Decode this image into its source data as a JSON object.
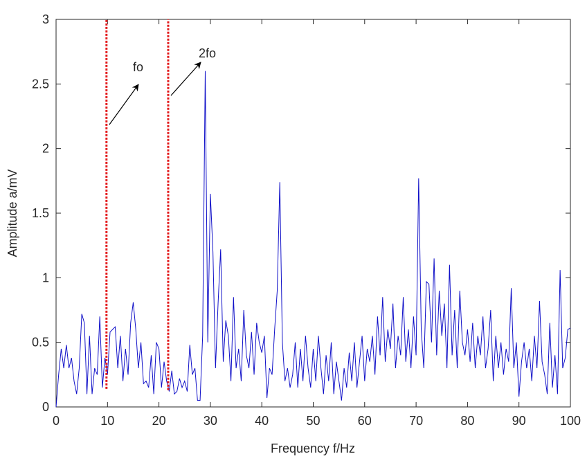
{
  "chart_data": {
    "type": "line",
    "xlabel": "Frequency f/Hz",
    "ylabel": "Amplitude a/mV",
    "annotations": [
      {
        "text": "fo"
      },
      {
        "text": "2fo"
      }
    ],
    "vlines": [
      {
        "x": 9.8,
        "ylim": [
          0.14,
          3
        ]
      },
      {
        "x": 21.8,
        "ylim": [
          0.13,
          3
        ]
      }
    ],
    "vline_color": "#e31a1c",
    "xlim": [
      0,
      100
    ],
    "ylim": [
      0,
      3
    ],
    "xticks": [
      0,
      10,
      20,
      30,
      40,
      50,
      60,
      70,
      80,
      90,
      100
    ],
    "yticks": [
      0,
      0.5,
      1,
      1.5,
      2,
      2.5,
      3
    ],
    "grid": false,
    "series": [
      {
        "color": "#1010c8",
        "x": [
          0,
          0.5,
          1,
          1.5,
          2,
          2.5,
          3,
          3.5,
          4,
          4.5,
          5,
          5.5,
          6,
          6.5,
          7,
          7.5,
          8,
          8.5,
          9,
          9.5,
          10,
          10.5,
          11,
          11.5,
          12,
          12.5,
          13,
          13.5,
          14,
          14.5,
          15,
          15.5,
          16,
          16.5,
          17,
          17.5,
          18,
          18.5,
          19,
          19.5,
          20,
          20.5,
          21,
          21.5,
          22,
          22.5,
          23,
          23.5,
          24,
          24.5,
          25,
          25.5,
          26,
          26.5,
          27,
          27.5,
          28,
          28.5,
          29,
          29.5,
          30,
          30.5,
          31,
          31.5,
          32,
          32.5,
          33,
          33.5,
          34,
          34.5,
          35,
          35.5,
          36,
          36.5,
          37,
          37.5,
          38,
          38.5,
          39,
          39.5,
          40,
          40.5,
          41,
          41.5,
          42,
          42.5,
          43,
          43.5,
          44,
          44.5,
          45,
          45.5,
          46,
          46.5,
          47,
          47.5,
          48,
          48.5,
          49,
          49.5,
          50,
          50.5,
          51,
          51.5,
          52,
          52.5,
          53,
          53.5,
          54,
          54.5,
          55,
          55.5,
          56,
          56.5,
          57,
          57.5,
          58,
          58.5,
          59,
          59.5,
          60,
          60.5,
          61,
          61.5,
          62,
          62.5,
          63,
          63.5,
          64,
          64.5,
          65,
          65.5,
          66,
          66.5,
          67,
          67.5,
          68,
          68.5,
          69,
          69.5,
          70,
          70.5,
          71,
          71.5,
          72,
          72.5,
          73,
          73.5,
          74,
          74.5,
          75,
          75.5,
          76,
          76.5,
          77,
          77.5,
          78,
          78.5,
          79,
          79.5,
          80,
          80.5,
          81,
          81.5,
          82,
          82.5,
          83,
          83.5,
          84,
          84.5,
          85,
          85.5,
          86,
          86.5,
          87,
          87.5,
          88,
          88.5,
          89,
          89.5,
          90,
          90.5,
          91,
          91.5,
          92,
          92.5,
          93,
          93.5,
          94,
          94.5,
          95,
          95.5,
          96,
          96.5,
          97,
          97.5,
          98,
          98.5,
          99,
          99.5,
          100
        ],
        "values": [
          0,
          0.25,
          0.45,
          0.3,
          0.48,
          0.3,
          0.38,
          0.2,
          0.1,
          0.3,
          0.72,
          0.65,
          0.1,
          0.55,
          0.1,
          0.3,
          0.25,
          0.7,
          0.15,
          0.38,
          0.25,
          0.58,
          0.6,
          0.62,
          0.3,
          0.55,
          0.2,
          0.45,
          0.25,
          0.65,
          0.81,
          0.6,
          0.3,
          0.5,
          0.18,
          0.2,
          0.15,
          0.4,
          0.1,
          0.5,
          0.45,
          0.15,
          0.35,
          0.2,
          0.12,
          0.28,
          0.1,
          0.12,
          0.22,
          0.15,
          0.2,
          0.12,
          0.48,
          0.25,
          0.3,
          0.05,
          0.05,
          0.55,
          2.6,
          0.5,
          1.65,
          1.2,
          0.3,
          0.8,
          1.22,
          0.35,
          0.67,
          0.55,
          0.2,
          0.85,
          0.3,
          0.45,
          0.2,
          0.75,
          0.4,
          0.3,
          0.58,
          0.25,
          0.65,
          0.5,
          0.42,
          0.55,
          0.07,
          0.3,
          0.25,
          0.6,
          0.9,
          1.74,
          0.5,
          0.2,
          0.3,
          0.15,
          0.25,
          0.5,
          0.15,
          0.45,
          0.2,
          0.55,
          0.3,
          0.15,
          0.45,
          0.2,
          0.55,
          0.3,
          0.1,
          0.4,
          0.2,
          0.5,
          0.1,
          0.35,
          0.2,
          0.05,
          0.3,
          0.15,
          0.42,
          0.2,
          0.5,
          0.15,
          0.35,
          0.55,
          0.2,
          0.45,
          0.35,
          0.55,
          0.25,
          0.7,
          0.4,
          0.85,
          0.35,
          0.6,
          0.45,
          0.8,
          0.3,
          0.55,
          0.4,
          0.85,
          0.35,
          0.6,
          0.3,
          0.7,
          0.4,
          1.77,
          0.6,
          0.3,
          0.97,
          0.95,
          0.5,
          1.15,
          0.4,
          0.9,
          0.55,
          0.8,
          0.3,
          1.1,
          0.4,
          0.75,
          0.3,
          0.9,
          0.5,
          0.4,
          0.6,
          0.35,
          0.65,
          0.3,
          0.55,
          0.4,
          0.7,
          0.3,
          0.45,
          0.75,
          0.2,
          0.55,
          0.3,
          0.5,
          0.25,
          0.45,
          0.35,
          0.92,
          0.3,
          0.5,
          0.08,
          0.35,
          0.5,
          0.3,
          0.45,
          0.2,
          0.55,
          0.3,
          0.82,
          0.35,
          0.25,
          0.1,
          0.65,
          0.15,
          0.4,
          0.1,
          1.06,
          0.3,
          0.38,
          0.6,
          0.61
        ]
      }
    ]
  }
}
